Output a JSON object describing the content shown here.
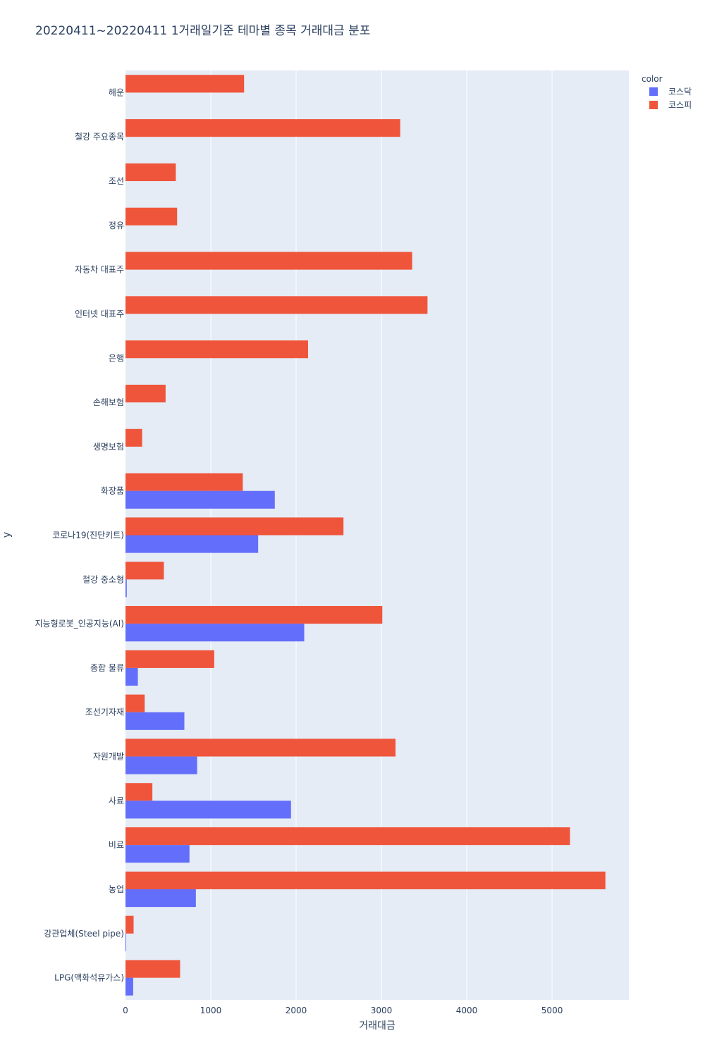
{
  "chart_data": {
    "type": "bar",
    "orientation": "horizontal",
    "title": "20220411~20220411 1거래일기준 테마별 종목 거래대금 분포",
    "xlabel": "거래대금",
    "ylabel": "y",
    "xlim": [
      0,
      5900
    ],
    "xticks": [
      0,
      1000,
      2000,
      3000,
      4000,
      5000
    ],
    "grid": true,
    "legend": {
      "title": "color",
      "placement": "top-right"
    },
    "categories": [
      "해운",
      "철강 주요종목",
      "조선",
      "정유",
      "자동차 대표주",
      "인터넷 대표주",
      "은행",
      "손해보험",
      "생명보험",
      "화장품",
      "코로나19(진단키트)",
      "철강 중소형",
      "지능형로봇_인공지능(AI)",
      "종합 물류",
      "조선기자재",
      "자원개발",
      "사료",
      "비료",
      "농업",
      "강관업체(Steel pipe)",
      "LPG(액화석유가스)"
    ],
    "series": [
      {
        "name": "코스피",
        "color": "#EF553B",
        "values": [
          1390,
          3220,
          590,
          605,
          3360,
          3540,
          2140,
          470,
          195,
          1375,
          2555,
          450,
          3010,
          1040,
          225,
          3165,
          315,
          5210,
          5625,
          95,
          640
        ]
      },
      {
        "name": "코스닥",
        "color": "#636EFA",
        "values": [
          0,
          0,
          0,
          0,
          0,
          0,
          0,
          0,
          0,
          1750,
          1555,
          15,
          2095,
          145,
          690,
          840,
          1940,
          750,
          825,
          5,
          90
        ]
      }
    ]
  },
  "colors": {
    "plot_bg": "#E5ECF6",
    "grid": "#ffffff",
    "text": "#2a3f5f"
  }
}
